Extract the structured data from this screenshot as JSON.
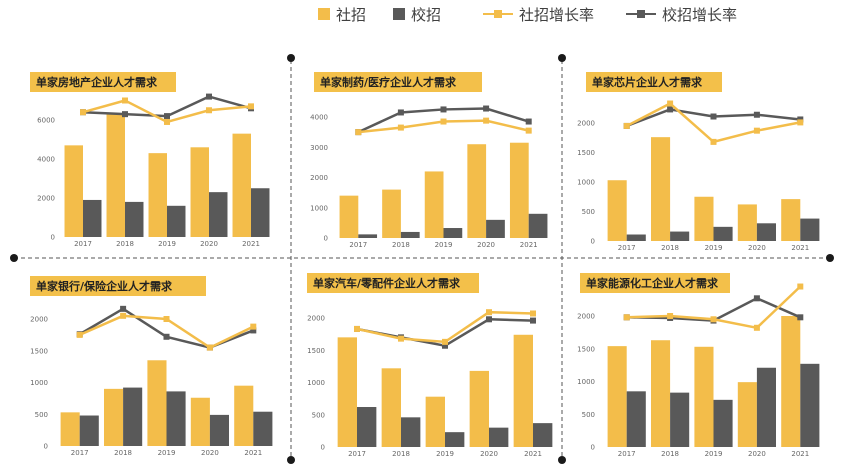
{
  "legend": {
    "items": [
      {
        "label": "社招",
        "kind": "bar",
        "color": "#f3bd4a"
      },
      {
        "label": "校招",
        "kind": "bar",
        "color": "#595959"
      },
      {
        "label": "社招增长率",
        "kind": "line",
        "color": "#f3bd4a"
      },
      {
        "label": "校招增长率",
        "kind": "line",
        "color": "#595959"
      }
    ]
  },
  "colors": {
    "social": "#f3bd4a",
    "campus": "#595959",
    "divider": "#555555"
  },
  "chart_data": [
    {
      "type": "bar",
      "title": "单家房地产企业人才需求",
      "categories": [
        "2017",
        "2018",
        "2019",
        "2020",
        "2021"
      ],
      "ylim": [
        0,
        6000
      ],
      "yticks": [
        "0",
        "2000",
        "4000",
        "6000"
      ],
      "series": [
        {
          "name": "社招",
          "type": "bar",
          "values": [
            4700,
            6300,
            4300,
            4600,
            5300
          ]
        },
        {
          "name": "校招",
          "type": "bar",
          "values": [
            1900,
            1800,
            1600,
            2300,
            2500
          ]
        },
        {
          "name": "社招增长率",
          "type": "line",
          "values": [
            6400,
            7000,
            5900,
            6500,
            6700
          ]
        },
        {
          "name": "校招增长率",
          "type": "line",
          "values": [
            6400,
            6300,
            6200,
            7200,
            6600
          ]
        }
      ]
    },
    {
      "type": "bar",
      "title": "单家制药/医疗企业人才需求",
      "categories": [
        "2017",
        "2018",
        "2019",
        "2020",
        "2021"
      ],
      "ylim": [
        0,
        4000
      ],
      "yticks": [
        "0",
        "1000",
        "2000",
        "3000",
        "4000"
      ],
      "series": [
        {
          "name": "社招",
          "type": "bar",
          "values": [
            1400,
            1600,
            2200,
            3100,
            3150
          ]
        },
        {
          "name": "校招",
          "type": "bar",
          "values": [
            120,
            200,
            330,
            600,
            800
          ]
        },
        {
          "name": "社招增长率",
          "type": "line",
          "values": [
            3500,
            3650,
            3850,
            3880,
            3550
          ]
        },
        {
          "name": "校招增长率",
          "type": "line",
          "values": [
            3500,
            4150,
            4250,
            4280,
            3850
          ]
        }
      ]
    },
    {
      "type": "bar",
      "title": "单家芯片企业人才需求",
      "categories": [
        "2017",
        "2018",
        "2019",
        "2020",
        "2021"
      ],
      "ylim": [
        0,
        2000
      ],
      "yticks": [
        "0",
        "500",
        "1000",
        "1500",
        "2000"
      ],
      "series": [
        {
          "name": "社招",
          "type": "bar",
          "values": [
            1030,
            1760,
            750,
            620,
            710
          ]
        },
        {
          "name": "校招",
          "type": "bar",
          "values": [
            110,
            160,
            240,
            300,
            380
          ]
        },
        {
          "name": "社招增长率",
          "type": "line",
          "values": [
            1950,
            2330,
            1680,
            1870,
            2010
          ]
        },
        {
          "name": "校招增长率",
          "type": "line",
          "values": [
            1950,
            2230,
            2110,
            2140,
            2060
          ]
        }
      ]
    },
    {
      "type": "bar",
      "title": "单家银行/保险企业人才需求",
      "categories": [
        "2017",
        "2018",
        "2019",
        "2020",
        "2021"
      ],
      "ylim": [
        0,
        2000
      ],
      "yticks": [
        "0",
        "500",
        "1000",
        "1500",
        "2000"
      ],
      "series": [
        {
          "name": "社招",
          "type": "bar",
          "values": [
            530,
            900,
            1350,
            760,
            950
          ]
        },
        {
          "name": "校招",
          "type": "bar",
          "values": [
            480,
            920,
            860,
            490,
            540
          ]
        },
        {
          "name": "社招增长率",
          "type": "line",
          "values": [
            1750,
            2050,
            2000,
            1550,
            1880
          ]
        },
        {
          "name": "校招增长率",
          "type": "line",
          "values": [
            1760,
            2160,
            1720,
            1550,
            1820
          ]
        }
      ]
    },
    {
      "type": "bar",
      "title": "单家汽车/零配件企业人才需求",
      "categories": [
        "2017",
        "2018",
        "2019",
        "2020",
        "2021"
      ],
      "ylim": [
        0,
        2000
      ],
      "yticks": [
        "0",
        "500",
        "1000",
        "1500",
        "2000"
      ],
      "series": [
        {
          "name": "社招",
          "type": "bar",
          "values": [
            1700,
            1220,
            780,
            1180,
            1740
          ]
        },
        {
          "name": "校招",
          "type": "bar",
          "values": [
            620,
            460,
            230,
            300,
            370
          ]
        },
        {
          "name": "社招增长率",
          "type": "line",
          "values": [
            1830,
            1680,
            1630,
            2090,
            2070
          ]
        },
        {
          "name": "校招增长率",
          "type": "line",
          "values": [
            1830,
            1700,
            1570,
            1980,
            1960
          ]
        }
      ]
    },
    {
      "type": "bar",
      "title": "单家能源化工企业人才需求",
      "categories": [
        "2017",
        "2018",
        "2019",
        "2020",
        "2021"
      ],
      "ylim": [
        0,
        2000
      ],
      "yticks": [
        "0",
        "500",
        "1000",
        "1500",
        "2000"
      ],
      "series": [
        {
          "name": "社招",
          "type": "bar",
          "values": [
            1540,
            1630,
            1530,
            990,
            2000
          ]
        },
        {
          "name": "校招",
          "type": "bar",
          "values": [
            850,
            830,
            720,
            1210,
            1270
          ]
        },
        {
          "name": "社招增长率",
          "type": "line",
          "values": [
            1980,
            2000,
            1950,
            1820,
            2450
          ]
        },
        {
          "name": "校招增长率",
          "type": "line",
          "values": [
            1980,
            1970,
            1930,
            2270,
            1980
          ]
        }
      ]
    }
  ]
}
